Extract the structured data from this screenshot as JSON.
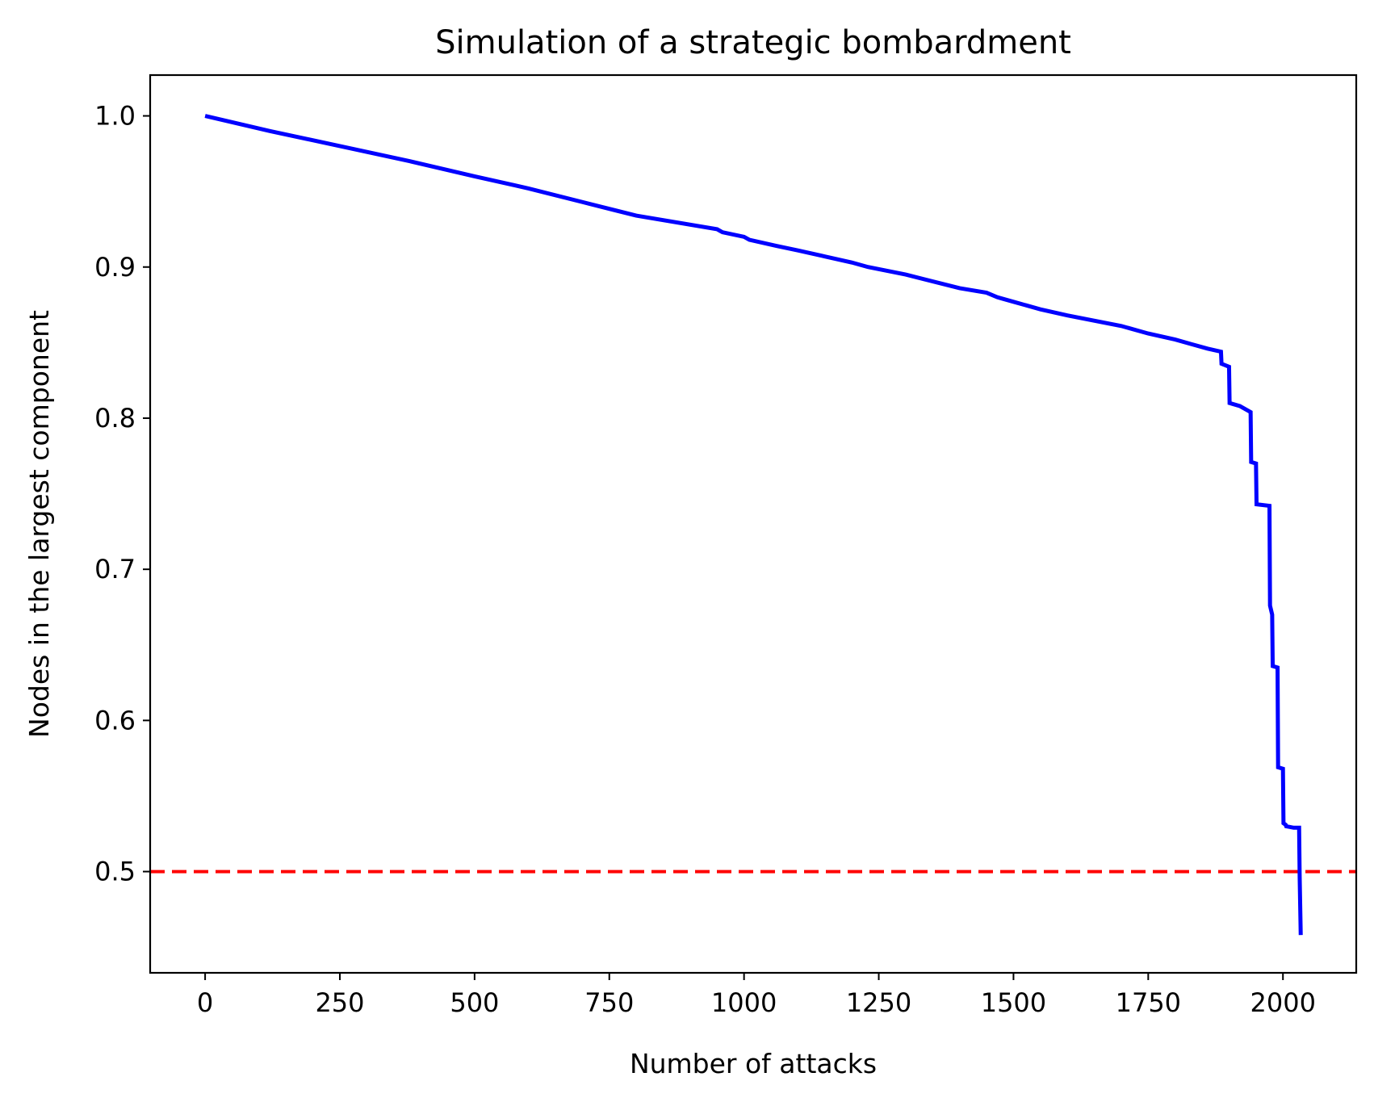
{
  "chart_data": {
    "type": "line",
    "title": "Simulation of a strategic bombardment",
    "xlabel": "Number of attacks",
    "ylabel": "Nodes in the largest component",
    "xlim": [
      -102,
      2136
    ],
    "ylim": [
      0.433,
      1.027
    ],
    "xticks": [
      0,
      250,
      500,
      750,
      1000,
      1250,
      1500,
      1750,
      2000
    ],
    "xtick_labels": [
      "0",
      "250",
      "500",
      "750",
      "1000",
      "1250",
      "1500",
      "1750",
      "2000"
    ],
    "yticks": [
      0.5,
      0.6,
      0.7,
      0.8,
      0.9,
      1.0
    ],
    "ytick_labels": [
      "0.5",
      "0.6",
      "0.7",
      "0.8",
      "0.9",
      "1.0"
    ],
    "grid": false,
    "series": [
      {
        "color": "#0000ff",
        "style": "solid",
        "x": [
          0,
          120,
          250,
          380,
          500,
          600,
          700,
          800,
          950,
          960,
          1000,
          1010,
          1060,
          1100,
          1150,
          1200,
          1230,
          1300,
          1400,
          1450,
          1470,
          1480,
          1500,
          1550,
          1600,
          1700,
          1740,
          1750,
          1800,
          1830,
          1860,
          1885,
          1886,
          1900,
          1901,
          1920,
          1940,
          1941,
          1950,
          1951,
          1975,
          1976,
          1980,
          1981,
          1990,
          1991,
          2000,
          2001,
          2005,
          2006,
          2020,
          2030,
          2031,
          2033
        ],
        "y": [
          1.0,
          0.99,
          0.98,
          0.97,
          0.96,
          0.952,
          0.943,
          0.934,
          0.925,
          0.923,
          0.92,
          0.918,
          0.914,
          0.911,
          0.907,
          0.903,
          0.9,
          0.895,
          0.886,
          0.883,
          0.88,
          0.879,
          0.877,
          0.872,
          0.868,
          0.861,
          0.857,
          0.856,
          0.852,
          0.849,
          0.846,
          0.844,
          0.836,
          0.834,
          0.81,
          0.808,
          0.804,
          0.771,
          0.77,
          0.743,
          0.742,
          0.676,
          0.67,
          0.636,
          0.635,
          0.569,
          0.568,
          0.532,
          0.531,
          0.53,
          0.529,
          0.529,
          0.497,
          0.458
        ]
      }
    ],
    "reference_lines": [
      {
        "axis": "y",
        "value": 0.5,
        "color": "#ff0000",
        "style": "dashed"
      }
    ]
  }
}
